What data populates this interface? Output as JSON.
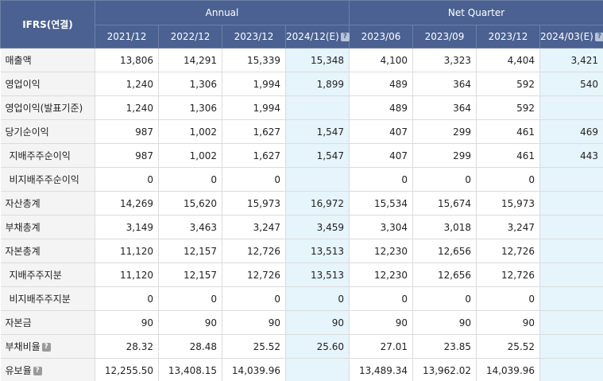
{
  "header": {
    "corner": "IFRS(연결)",
    "groups": [
      "Annual",
      "Net Quarter"
    ],
    "periods": [
      {
        "label": "2021/12",
        "help": false
      },
      {
        "label": "2022/12",
        "help": false
      },
      {
        "label": "2023/12",
        "help": false
      },
      {
        "label": "2024/12(E)",
        "help": true
      },
      {
        "label": "2023/06",
        "help": false
      },
      {
        "label": "2023/09",
        "help": false
      },
      {
        "label": "2023/12",
        "help": false
      },
      {
        "label": "2024/03(E)",
        "help": true
      }
    ],
    "help_icon": "?"
  },
  "rows": [
    {
      "label": "매출액",
      "sub": false,
      "help": false,
      "values": [
        "13,806",
        "14,291",
        "15,339",
        "15,348",
        "4,100",
        "3,323",
        "4,404",
        "3,421"
      ]
    },
    {
      "label": "영업이익",
      "sub": false,
      "help": false,
      "values": [
        "1,240",
        "1,306",
        "1,994",
        "1,899",
        "489",
        "364",
        "592",
        "540"
      ]
    },
    {
      "label": "영업이익(발표기준)",
      "sub": false,
      "help": false,
      "values": [
        "1,240",
        "1,306",
        "1,994",
        "",
        "489",
        "364",
        "592",
        ""
      ]
    },
    {
      "label": "당기순이익",
      "sub": false,
      "help": false,
      "values": [
        "987",
        "1,002",
        "1,627",
        "1,547",
        "407",
        "299",
        "461",
        "469"
      ]
    },
    {
      "label": "지배주주순이익",
      "sub": true,
      "help": false,
      "values": [
        "987",
        "1,002",
        "1,627",
        "1,547",
        "407",
        "299",
        "461",
        "443"
      ]
    },
    {
      "label": "비지배주주순이익",
      "sub": true,
      "help": false,
      "values": [
        "0",
        "0",
        "0",
        "",
        "0",
        "0",
        "0",
        ""
      ]
    },
    {
      "label": "자산총계",
      "sub": false,
      "help": false,
      "values": [
        "14,269",
        "15,620",
        "15,973",
        "16,972",
        "15,534",
        "15,674",
        "15,973",
        ""
      ]
    },
    {
      "label": "부채총계",
      "sub": false,
      "help": false,
      "values": [
        "3,149",
        "3,463",
        "3,247",
        "3,459",
        "3,304",
        "3,018",
        "3,247",
        ""
      ]
    },
    {
      "label": "자본총계",
      "sub": false,
      "help": false,
      "values": [
        "11,120",
        "12,157",
        "12,726",
        "13,513",
        "12,230",
        "12,656",
        "12,726",
        ""
      ]
    },
    {
      "label": "지배주주지분",
      "sub": true,
      "help": false,
      "values": [
        "11,120",
        "12,157",
        "12,726",
        "13,513",
        "12,230",
        "12,656",
        "12,726",
        ""
      ]
    },
    {
      "label": "비지배주주지분",
      "sub": true,
      "help": false,
      "values": [
        "0",
        "0",
        "0",
        "0",
        "0",
        "0",
        "0",
        ""
      ]
    },
    {
      "label": "자본금",
      "sub": false,
      "help": false,
      "values": [
        "90",
        "90",
        "90",
        "90",
        "90",
        "90",
        "90",
        ""
      ]
    },
    {
      "label": "부채비율",
      "sub": false,
      "help": true,
      "values": [
        "28.32",
        "28.48",
        "25.52",
        "25.60",
        "27.01",
        "23.85",
        "25.52",
        ""
      ]
    },
    {
      "label": "유보율",
      "sub": false,
      "help": true,
      "values": [
        "12,255.50",
        "13,408.15",
        "14,039.96",
        "",
        "13,489.34",
        "13,962.02",
        "14,039.96",
        ""
      ]
    }
  ],
  "colors": {
    "header_bg": "#4a6191",
    "estimate_bg": "#e6f4fb",
    "label_bg": "#f4f4f4"
  }
}
